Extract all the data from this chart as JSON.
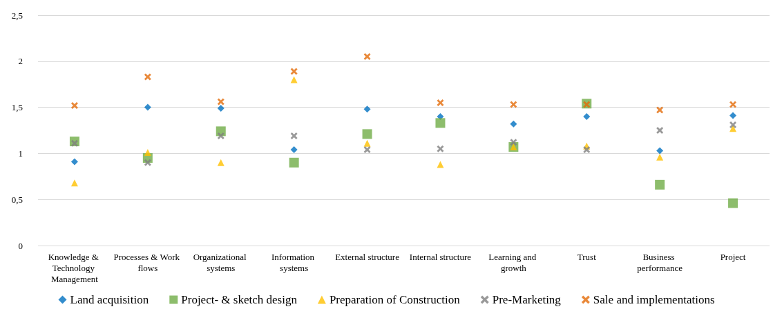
{
  "chart_data": {
    "type": "scatter",
    "categories": [
      "Knowledge & Technology Management",
      "Processes & Work flows",
      "Organizational systems",
      "Information systems",
      "External structure",
      "Internal structure",
      "Learning and growth",
      "Trust",
      "Business performance",
      "Project"
    ],
    "series": [
      {
        "name": "Land acquisition",
        "color": "#0070c0",
        "marker": "diamond",
        "values": [
          0.91,
          1.5,
          1.49,
          1.04,
          1.48,
          1.4,
          1.32,
          1.4,
          1.03,
          1.41
        ]
      },
      {
        "name": "Project- & sketch design",
        "color": "#70ad47",
        "marker": "square",
        "values": [
          1.13,
          0.95,
          1.24,
          0.9,
          1.21,
          1.33,
          1.07,
          1.54,
          0.66,
          0.46
        ]
      },
      {
        "name": "Preparation of Construction",
        "color": "#ffc000",
        "marker": "triangle",
        "values": [
          0.68,
          1.01,
          0.9,
          1.8,
          1.11,
          0.88,
          1.07,
          1.08,
          0.96,
          1.27
        ]
      },
      {
        "name": "Pre-Marketing",
        "color": "#808080",
        "marker": "cross",
        "values": [
          1.11,
          0.9,
          1.19,
          1.19,
          1.04,
          1.05,
          1.12,
          1.04,
          1.25,
          1.31
        ]
      },
      {
        "name": "Sale and implementations",
        "color": "#e36c09",
        "marker": "cross",
        "values": [
          1.52,
          1.83,
          1.56,
          1.89,
          2.05,
          1.55,
          1.53,
          1.53,
          1.47,
          1.53
        ]
      }
    ],
    "ylim": [
      0,
      2.5
    ],
    "yticks": [
      0,
      {
        "value": 0.5,
        "label": "0,5"
      },
      1,
      {
        "value": 1.5,
        "label": "1,5"
      },
      2,
      {
        "value": 2.5,
        "label": "2,5"
      }
    ],
    "grid": "y",
    "legend": "bottom"
  }
}
